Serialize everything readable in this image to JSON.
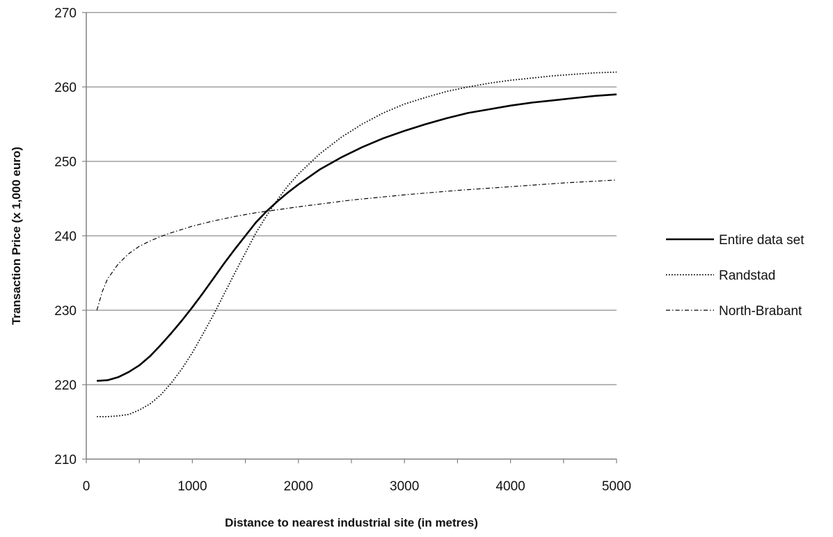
{
  "chart_data": {
    "type": "line",
    "title": "",
    "xlabel": "Distance to nearest industrial site (in metres)",
    "ylabel": "Transaction Price (x 1,000 euro)",
    "xlim": [
      0,
      5000
    ],
    "ylim": [
      210,
      270
    ],
    "x_ticks": [
      0,
      1000,
      2000,
      3000,
      4000,
      5000
    ],
    "y_ticks": [
      210,
      220,
      230,
      240,
      250,
      260,
      270
    ],
    "x_tick_labels": [
      "0",
      "1000",
      "2000",
      "3000",
      "4000",
      "5000"
    ],
    "y_tick_labels": [
      "210",
      "220",
      "230",
      "240",
      "250",
      "260",
      "270"
    ],
    "grid": "horizontal",
    "legend_position": "right",
    "series": [
      {
        "name": "Entire data set",
        "style": "solid",
        "x": [
          100,
          200,
          300,
          400,
          500,
          600,
          700,
          800,
          900,
          1000,
          1100,
          1200,
          1300,
          1400,
          1500,
          1600,
          1700,
          1800,
          1900,
          2000,
          2200,
          2400,
          2600,
          2800,
          3000,
          3200,
          3400,
          3600,
          3800,
          4000,
          4200,
          4400,
          4600,
          4800,
          5000
        ],
        "y": [
          220.5,
          220.6,
          221.0,
          221.7,
          222.6,
          223.8,
          225.3,
          226.9,
          228.6,
          230.4,
          232.3,
          234.3,
          236.3,
          238.2,
          240.0,
          241.8,
          243.3,
          244.6,
          245.8,
          246.9,
          248.9,
          250.5,
          251.9,
          253.1,
          254.1,
          255.0,
          255.8,
          256.5,
          257.0,
          257.5,
          257.9,
          258.2,
          258.5,
          258.8,
          259.0
        ]
      },
      {
        "name": "Randstad",
        "style": "dotted",
        "x": [
          100,
          200,
          300,
          400,
          500,
          600,
          700,
          800,
          900,
          1000,
          1100,
          1200,
          1300,
          1400,
          1500,
          1600,
          1700,
          1800,
          1900,
          2000,
          2200,
          2400,
          2600,
          2800,
          3000,
          3200,
          3400,
          3600,
          3800,
          4000,
          4200,
          4400,
          4600,
          4800,
          5000
        ],
        "y": [
          215.7,
          215.7,
          215.8,
          216.0,
          216.6,
          217.4,
          218.6,
          220.2,
          222.1,
          224.3,
          226.8,
          229.4,
          232.2,
          235.0,
          237.7,
          240.4,
          242.7,
          244.8,
          246.7,
          248.3,
          251.0,
          253.2,
          255.0,
          256.5,
          257.7,
          258.6,
          259.4,
          260.0,
          260.5,
          260.9,
          261.2,
          261.5,
          261.7,
          261.9,
          262.0
        ]
      },
      {
        "name": "North-Brabant",
        "style": "dash-dot",
        "x": [
          100,
          150,
          200,
          300,
          400,
          500,
          600,
          700,
          800,
          1000,
          1200,
          1400,
          1600,
          1800,
          2000,
          2500,
          3000,
          3500,
          4000,
          4500,
          5000
        ],
        "y": [
          230.0,
          232.5,
          234.2,
          236.2,
          237.6,
          238.6,
          239.3,
          239.9,
          240.4,
          241.3,
          242.0,
          242.6,
          243.1,
          243.5,
          243.9,
          244.8,
          245.5,
          246.1,
          246.6,
          247.1,
          247.5
        ]
      }
    ]
  }
}
